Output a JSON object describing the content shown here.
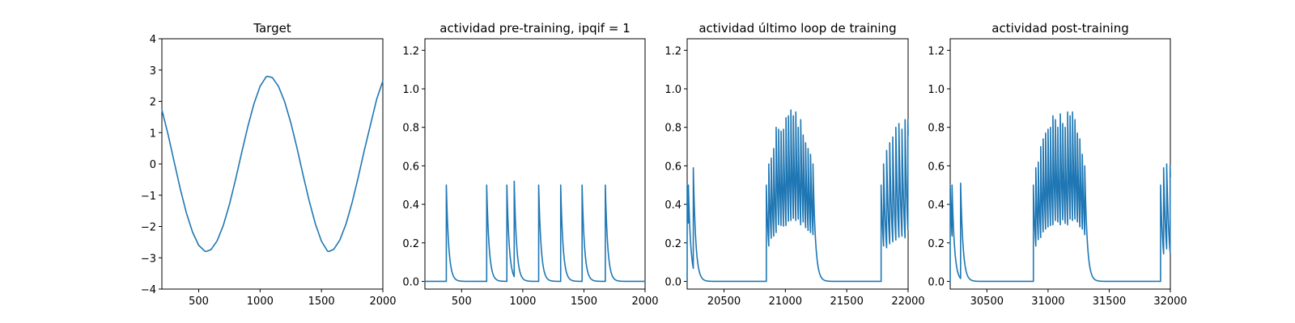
{
  "chart_data": [
    {
      "type": "line",
      "title": "Target",
      "xlabel": "",
      "ylabel": "",
      "xlim": [
        200,
        2000
      ],
      "ylim": [
        -4,
        4
      ],
      "xticks": [
        500,
        1000,
        1500,
        2000
      ],
      "yticks": [
        -4,
        -3,
        -2,
        -1,
        0,
        1,
        2,
        3,
        4
      ],
      "xtick_labels": [
        "500",
        "1000",
        "1500",
        "2000"
      ],
      "ytick_labels": [
        "−4",
        "−3",
        "−2",
        "−1",
        "0",
        "1",
        "2",
        "3",
        "4"
      ],
      "color": "#1f77b4",
      "grid": false,
      "series": [
        {
          "x": [
            200,
            250,
            300,
            350,
            400,
            450,
            500,
            550,
            560,
            600,
            650,
            700,
            750,
            800,
            850,
            900,
            950,
            1000,
            1050,
            1060,
            1100,
            1150,
            1200,
            1250,
            1300,
            1350,
            1400,
            1450,
            1500,
            1550,
            1560,
            1600,
            1650,
            1700,
            1750,
            1800,
            1850,
            1900,
            1950,
            2000
          ],
          "y": [
            1.73,
            0.95,
            0.07,
            -0.8,
            -1.57,
            -2.18,
            -2.6,
            -2.79,
            -2.8,
            -2.74,
            -2.46,
            -1.97,
            -1.3,
            -0.5,
            0.36,
            1.19,
            1.92,
            2.48,
            2.79,
            2.8,
            2.76,
            2.48,
            1.99,
            1.32,
            0.52,
            -0.35,
            -1.18,
            -1.91,
            -2.47,
            -2.79,
            -2.8,
            -2.73,
            -2.43,
            -1.92,
            -1.23,
            -0.42,
            0.45,
            1.26,
            2.07,
            2.65
          ]
        }
      ]
    },
    {
      "type": "line",
      "title": "actividad pre-training, ipqif = 1",
      "xlabel": "",
      "ylabel": "",
      "xlim": [
        200,
        2000
      ],
      "ylim": [
        -0.04,
        1.26
      ],
      "xticks": [
        500,
        1000,
        1500,
        2000
      ],
      "yticks": [
        0.0,
        0.2,
        0.4,
        0.6,
        0.8,
        1.0,
        1.2
      ],
      "xtick_labels": [
        "500",
        "1000",
        "1500",
        "2000"
      ],
      "ytick_labels": [
        "0.0",
        "0.2",
        "0.4",
        "0.6",
        "0.8",
        "1.0",
        "1.2"
      ],
      "color": "#1f77b4",
      "grid": false,
      "baseline": 0.0,
      "decay": 20,
      "spikes": [
        {
          "t": 375,
          "h": 0.5
        },
        {
          "t": 705,
          "h": 0.5
        },
        {
          "t": 870,
          "h": 0.5
        },
        {
          "t": 930,
          "h": 0.52
        },
        {
          "t": 1130,
          "h": 0.5
        },
        {
          "t": 1310,
          "h": 0.5
        },
        {
          "t": 1485,
          "h": 0.5
        },
        {
          "t": 1675,
          "h": 0.5
        }
      ]
    },
    {
      "type": "line",
      "title": "actividad último loop de training",
      "xlabel": "",
      "ylabel": "",
      "xlim": [
        20200,
        22000
      ],
      "ylim": [
        -0.04,
        1.26
      ],
      "xticks": [
        20500,
        21000,
        21500,
        22000
      ],
      "yticks": [
        0.0,
        0.2,
        0.4,
        0.6,
        0.8,
        1.0,
        1.2
      ],
      "xtick_labels": [
        "20500",
        "21000",
        "21500",
        "22000"
      ],
      "ytick_labels": [
        "0.0",
        "0.2",
        "0.4",
        "0.6",
        "0.8",
        "1.0",
        "1.2"
      ],
      "color": "#1f77b4",
      "grid": false,
      "baseline": 0.0,
      "decay": 20,
      "spikes": [
        {
          "t": 20200,
          "h": 0.5
        },
        {
          "t": 20210,
          "h": 0.5
        },
        {
          "t": 20250,
          "h": 0.59
        },
        {
          "t": 20845,
          "h": 0.5
        },
        {
          "t": 20865,
          "h": 0.61
        },
        {
          "t": 20885,
          "h": 0.64
        },
        {
          "t": 20905,
          "h": 0.69
        },
        {
          "t": 20925,
          "h": 0.8
        },
        {
          "t": 20945,
          "h": 0.79
        },
        {
          "t": 20965,
          "h": 0.78
        },
        {
          "t": 20985,
          "h": 0.79
        },
        {
          "t": 21005,
          "h": 0.85
        },
        {
          "t": 21025,
          "h": 0.86
        },
        {
          "t": 21045,
          "h": 0.89
        },
        {
          "t": 21065,
          "h": 0.86
        },
        {
          "t": 21085,
          "h": 0.88
        },
        {
          "t": 21105,
          "h": 0.8
        },
        {
          "t": 21125,
          "h": 0.84
        },
        {
          "t": 21145,
          "h": 0.76
        },
        {
          "t": 21165,
          "h": 0.72
        },
        {
          "t": 21185,
          "h": 0.69
        },
        {
          "t": 21205,
          "h": 0.66
        },
        {
          "t": 21225,
          "h": 0.61
        },
        {
          "t": 21780,
          "h": 0.5
        },
        {
          "t": 21800,
          "h": 0.61
        },
        {
          "t": 21825,
          "h": 0.68
        },
        {
          "t": 21850,
          "h": 0.72
        },
        {
          "t": 21875,
          "h": 0.75
        },
        {
          "t": 21900,
          "h": 0.8
        },
        {
          "t": 21925,
          "h": 0.82
        },
        {
          "t": 21950,
          "h": 0.79
        },
        {
          "t": 21975,
          "h": 0.84
        },
        {
          "t": 21998,
          "h": 0.84
        }
      ]
    },
    {
      "type": "line",
      "title": "actividad post-training",
      "xlabel": "",
      "ylabel": "",
      "xlim": [
        30200,
        32000
      ],
      "ylim": [
        -0.04,
        1.26
      ],
      "xticks": [
        30500,
        31000,
        31500,
        32000
      ],
      "yticks": [
        0.0,
        0.2,
        0.4,
        0.6,
        0.8,
        1.0,
        1.2
      ],
      "xtick_labels": [
        "30500",
        "31000",
        "31500",
        "32000"
      ],
      "ytick_labels": [
        "0.0",
        "0.2",
        "0.4",
        "0.6",
        "0.8",
        "1.0",
        "1.2"
      ],
      "color": "#1f77b4",
      "grid": false,
      "baseline": 0.0,
      "decay": 20,
      "spikes": [
        {
          "t": 30200,
          "h": 0.5
        },
        {
          "t": 30215,
          "h": 0.5
        },
        {
          "t": 30285,
          "h": 0.51
        },
        {
          "t": 30880,
          "h": 0.5
        },
        {
          "t": 30900,
          "h": 0.59
        },
        {
          "t": 30920,
          "h": 0.62
        },
        {
          "t": 30940,
          "h": 0.7
        },
        {
          "t": 30960,
          "h": 0.74
        },
        {
          "t": 30980,
          "h": 0.77
        },
        {
          "t": 31000,
          "h": 0.79
        },
        {
          "t": 31020,
          "h": 0.8
        },
        {
          "t": 31040,
          "h": 0.86
        },
        {
          "t": 31060,
          "h": 0.84
        },
        {
          "t": 31080,
          "h": 0.8
        },
        {
          "t": 31100,
          "h": 0.87
        },
        {
          "t": 31120,
          "h": 0.82
        },
        {
          "t": 31140,
          "h": 0.8
        },
        {
          "t": 31160,
          "h": 0.88
        },
        {
          "t": 31180,
          "h": 0.86
        },
        {
          "t": 31200,
          "h": 0.88
        },
        {
          "t": 31220,
          "h": 0.84
        },
        {
          "t": 31240,
          "h": 0.77
        },
        {
          "t": 31260,
          "h": 0.74
        },
        {
          "t": 31280,
          "h": 0.66
        },
        {
          "t": 31300,
          "h": 0.6
        },
        {
          "t": 31920,
          "h": 0.5
        },
        {
          "t": 31945,
          "h": 0.59
        },
        {
          "t": 31970,
          "h": 0.61
        },
        {
          "t": 31998,
          "h": 0.6
        }
      ]
    }
  ]
}
